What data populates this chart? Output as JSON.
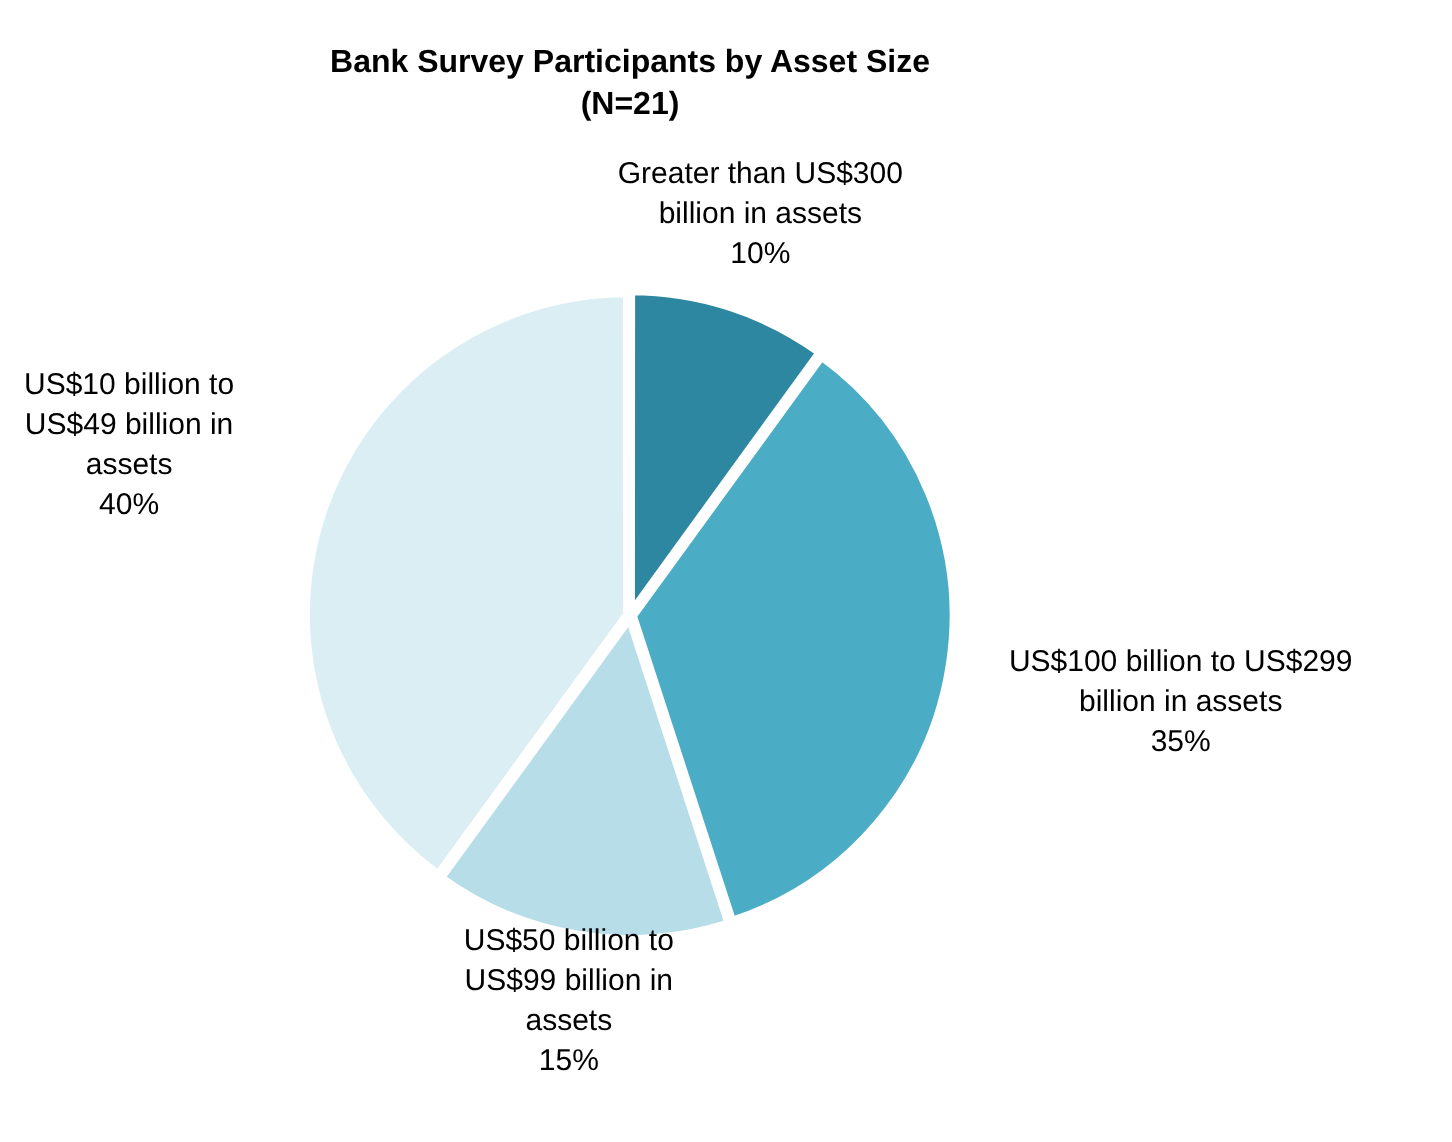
{
  "chart_data": {
    "type": "pie",
    "title": "Bank Survey Participants by Asset Size",
    "subtitle": "(N=21)",
    "categories": [
      "Greater than US$300 billion in assets",
      "US$100 billion to US$299 billion in assets",
      "US$50 billion to US$99 billion in assets",
      "US$10 billion to US$49 billion in assets"
    ],
    "values": [
      10,
      35,
      15,
      40
    ],
    "colors": [
      "#2e87a0",
      "#4bacc6",
      "#b6dde8",
      "#dbeef4"
    ],
    "value_labels": [
      "10%",
      "35%",
      "15%",
      "40%"
    ],
    "legend": false
  }
}
